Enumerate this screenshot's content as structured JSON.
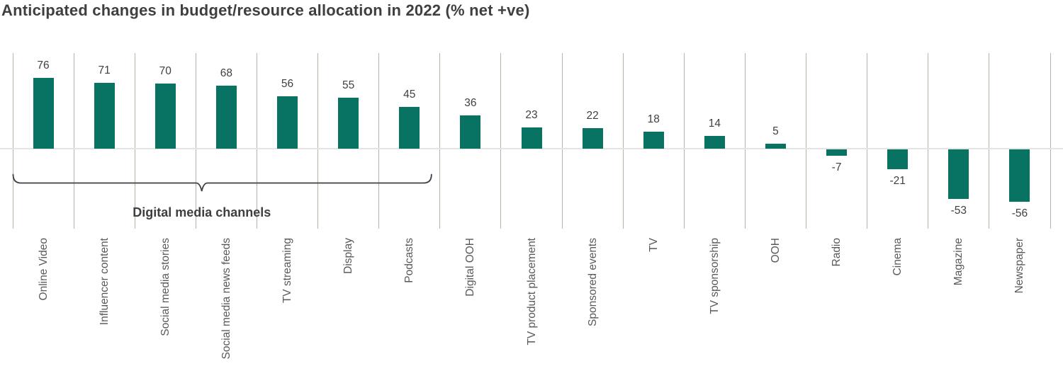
{
  "title": "Anticipated changes in budget/resource allocation in 2022 (% net +ve)",
  "annotation": {
    "label": "Digital media channels"
  },
  "colors": {
    "bar": "#087362",
    "gridline": "#b5b3a4",
    "zero_line": "#e4e4e4",
    "title_text": "#3f3f3f",
    "value_text": "#3f3f3f",
    "category_text": "#595959",
    "bracket": "#404040",
    "background": "#ffffff"
  },
  "chart_data": {
    "type": "bar",
    "title": "Anticipated changes in budget/resource allocation in 2022 (% net +ve)",
    "categories": [
      "Online Video",
      "Influencer content",
      "Social media stories",
      "Social media news feeds",
      "TV streaming",
      "Display",
      "Podcasts",
      "Digital OOH",
      "TV product placement",
      "Sponsored events",
      "TV",
      "TV sponsorship",
      "OOH",
      "Radio",
      "Cinema",
      "Magazine",
      "Newspaper"
    ],
    "values": [
      76,
      71,
      70,
      68,
      56,
      55,
      45,
      36,
      23,
      22,
      18,
      14,
      5,
      -7,
      -21,
      -53,
      -56
    ],
    "xlabel": "",
    "ylabel": "",
    "ylim": [
      -75,
      105
    ],
    "data_labels": true,
    "legend": "none",
    "grid": "vertical category separators only",
    "bar_orientation": "vertical",
    "category_label_rotation": -90,
    "annotation": {
      "label": "Digital media channels",
      "categories_spanned": [
        "Online Video",
        "Influencer content",
        "Social media stories",
        "Social media news feeds",
        "TV streaming",
        "Display",
        "Podcasts"
      ]
    }
  }
}
